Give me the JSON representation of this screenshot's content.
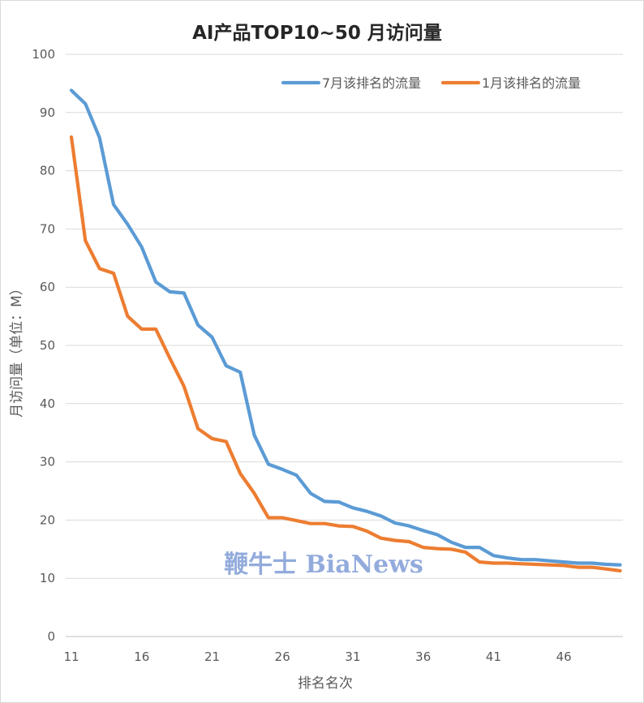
{
  "chart_data": {
    "type": "line",
    "title": "AI产品TOP10~50 月访问量",
    "xlabel": "排名名次",
    "ylabel": "月访问量（单位：M）",
    "ylim": [
      0,
      100
    ],
    "xlim": [
      11,
      50
    ],
    "yticks": [
      0,
      10,
      20,
      30,
      40,
      50,
      60,
      70,
      80,
      90,
      100
    ],
    "xticks": [
      11,
      16,
      21,
      26,
      31,
      36,
      41,
      46
    ],
    "grid": true,
    "legend_position": "top-right",
    "x": [
      11,
      12,
      13,
      14,
      15,
      16,
      17,
      18,
      19,
      20,
      21,
      22,
      23,
      24,
      25,
      26,
      27,
      28,
      29,
      30,
      31,
      32,
      33,
      34,
      35,
      36,
      37,
      38,
      39,
      40,
      41,
      42,
      43,
      44,
      45,
      46,
      47,
      48,
      49,
      50
    ],
    "series": [
      {
        "name": "7月该排名的流量",
        "color": "#5b9bd5",
        "values": [
          93.8,
          91.5,
          85.7,
          74.2,
          70.8,
          66.9,
          60.9,
          59.2,
          59.0,
          53.5,
          51.4,
          46.5,
          45.4,
          34.6,
          29.6,
          28.7,
          27.7,
          24.6,
          23.2,
          23.1,
          22.1,
          21.5,
          20.7,
          19.5,
          19.0,
          18.2,
          17.5,
          16.2,
          15.3,
          15.3,
          13.9,
          13.5,
          13.2,
          13.2,
          13.0,
          12.8,
          12.6,
          12.6,
          12.4,
          12.3
        ]
      },
      {
        "name": "1月该排名的流量",
        "color": "#ed7d31",
        "values": [
          85.8,
          68.0,
          63.2,
          62.4,
          55.0,
          52.8,
          52.8,
          47.8,
          43.0,
          35.7,
          34.0,
          33.5,
          28.0,
          24.6,
          20.4,
          20.4,
          19.9,
          19.4,
          19.4,
          19.0,
          18.9,
          18.1,
          16.9,
          16.5,
          16.3,
          15.3,
          15.1,
          15.0,
          14.5,
          12.8,
          12.6,
          12.6,
          12.5,
          12.4,
          12.3,
          12.2,
          11.9,
          11.9,
          11.6,
          11.3
        ]
      }
    ],
    "watermark": "鞭牛士 BiaNews"
  }
}
